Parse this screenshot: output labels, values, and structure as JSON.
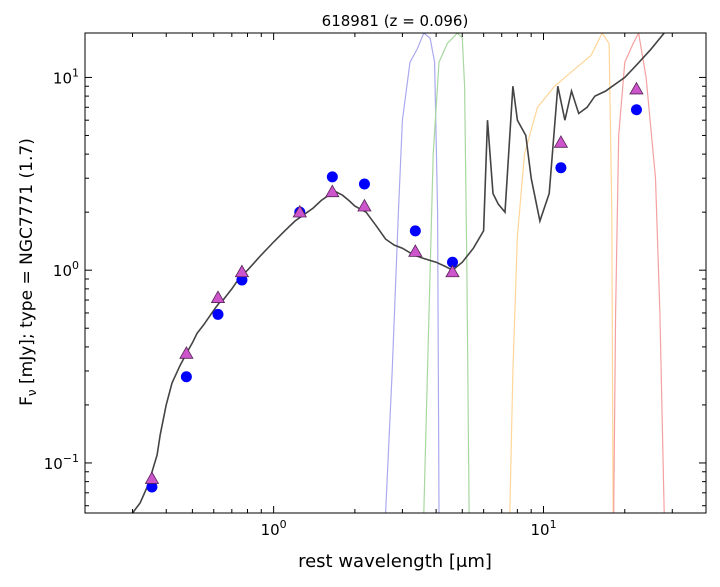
{
  "chart_data": {
    "type": "scatter",
    "title": "618981 (z = 0.096)",
    "xlabel": "rest wavelength [μm]",
    "ylabel": "F_ν [mJy];  type = NGC7771 (1.7)",
    "xscale": "log",
    "yscale": "log",
    "xlim": [
      0.2,
      40
    ],
    "ylim": [
      0.055,
      17
    ],
    "x_ticks": [
      {
        "value": 1,
        "base": "10",
        "exp": "0"
      },
      {
        "value": 10,
        "base": "10",
        "exp": "1"
      }
    ],
    "y_ticks": [
      {
        "value": 0.1,
        "base": "10",
        "exp": "−1"
      },
      {
        "value": 1,
        "base": "10",
        "exp": "0"
      },
      {
        "value": 10,
        "base": "10",
        "exp": "1"
      }
    ],
    "template_sed": {
      "color": "#444444",
      "points": [
        [
          0.3,
          0.055
        ],
        [
          0.32,
          0.062
        ],
        [
          0.34,
          0.075
        ],
        [
          0.35,
          0.085
        ],
        [
          0.37,
          0.11
        ],
        [
          0.38,
          0.14
        ],
        [
          0.4,
          0.2
        ],
        [
          0.42,
          0.26
        ],
        [
          0.45,
          0.32
        ],
        [
          0.48,
          0.38
        ],
        [
          0.5,
          0.42
        ],
        [
          0.52,
          0.47
        ],
        [
          0.55,
          0.52
        ],
        [
          0.6,
          0.62
        ],
        [
          0.63,
          0.68
        ],
        [
          0.65,
          0.7
        ],
        [
          0.7,
          0.8
        ],
        [
          0.75,
          0.92
        ],
        [
          0.8,
          1.0
        ],
        [
          0.9,
          1.2
        ],
        [
          1.0,
          1.4
        ],
        [
          1.1,
          1.6
        ],
        [
          1.2,
          1.8
        ],
        [
          1.3,
          1.95
        ],
        [
          1.4,
          2.1
        ],
        [
          1.5,
          2.3
        ],
        [
          1.6,
          2.45
        ],
        [
          1.7,
          2.55
        ],
        [
          1.8,
          2.45
        ],
        [
          1.9,
          2.3
        ],
        [
          2.0,
          2.15
        ],
        [
          2.2,
          2.0
        ],
        [
          2.4,
          1.7
        ],
        [
          2.6,
          1.45
        ],
        [
          2.8,
          1.35
        ],
        [
          3.0,
          1.3
        ],
        [
          3.3,
          1.2
        ],
        [
          3.6,
          1.15
        ],
        [
          4.0,
          1.1
        ],
        [
          4.3,
          1.05
        ],
        [
          4.6,
          1.0
        ],
        [
          5.0,
          1.1
        ],
        [
          5.5,
          1.3
        ],
        [
          6.0,
          1.6
        ],
        [
          6.2,
          6.0
        ],
        [
          6.5,
          2.5
        ],
        [
          6.8,
          2.2
        ],
        [
          7.2,
          2.0
        ],
        [
          7.7,
          9.0
        ],
        [
          8.0,
          6.0
        ],
        [
          8.6,
          5.0
        ],
        [
          9.0,
          3.0
        ],
        [
          9.7,
          1.8
        ],
        [
          10.5,
          2.5
        ],
        [
          11.3,
          9.0
        ],
        [
          12.0,
          6.0
        ],
        [
          12.7,
          8.5
        ],
        [
          13.5,
          6.5
        ],
        [
          14.5,
          7.0
        ],
        [
          15.5,
          8.0
        ],
        [
          17.0,
          8.5
        ],
        [
          18.0,
          9.0
        ],
        [
          20.0,
          10.0
        ],
        [
          22.0,
          11.5
        ],
        [
          25.0,
          14.0
        ],
        [
          28.0,
          17.0
        ]
      ]
    },
    "filter_curves": [
      {
        "color": "#aaaaee",
        "points": [
          [
            2.6,
            0.055
          ],
          [
            2.75,
            0.3
          ],
          [
            2.9,
            2.0
          ],
          [
            3.0,
            6.0
          ],
          [
            3.2,
            12.0
          ],
          [
            3.4,
            14.0
          ],
          [
            3.6,
            17.0
          ],
          [
            3.8,
            16.0
          ],
          [
            3.95,
            12.0
          ],
          [
            4.05,
            2.0
          ],
          [
            4.1,
            0.055
          ]
        ]
      },
      {
        "color": "#a8d8a0",
        "points": [
          [
            3.6,
            0.055
          ],
          [
            3.75,
            0.5
          ],
          [
            3.9,
            4.0
          ],
          [
            4.1,
            12.0
          ],
          [
            4.4,
            15.0
          ],
          [
            4.8,
            17.0
          ],
          [
            5.0,
            16.0
          ],
          [
            5.1,
            9.0
          ],
          [
            5.2,
            1.0
          ],
          [
            5.3,
            0.055
          ]
        ]
      },
      {
        "color": "#ffd699",
        "points": [
          [
            7.5,
            0.055
          ],
          [
            7.7,
            0.3
          ],
          [
            8.0,
            1.5
          ],
          [
            8.5,
            4.0
          ],
          [
            9.5,
            7.0
          ],
          [
            11.0,
            9.0
          ],
          [
            13.0,
            11.0
          ],
          [
            15.0,
            13.0
          ],
          [
            16.5,
            17.0
          ],
          [
            17.5,
            15.0
          ],
          [
            17.9,
            2.0
          ],
          [
            18.1,
            0.055
          ]
        ]
      },
      {
        "color": "#f5a0a0",
        "points": [
          [
            18.2,
            0.055
          ],
          [
            18.5,
            0.6
          ],
          [
            19.0,
            5.0
          ],
          [
            20.0,
            12.0
          ],
          [
            21.5,
            15.0
          ],
          [
            22.5,
            17.0
          ],
          [
            24.0,
            10.0
          ],
          [
            26.0,
            3.0
          ],
          [
            27.0,
            0.6
          ],
          [
            28.0,
            0.055
          ]
        ]
      }
    ],
    "series": [
      {
        "marker": "circle",
        "color": "#0000ff",
        "points": [
          [
            0.354,
            0.075
          ],
          [
            0.475,
            0.28
          ],
          [
            0.622,
            0.59
          ],
          [
            0.763,
            0.89
          ],
          [
            1.25,
            2.0
          ],
          [
            1.65,
            3.05
          ],
          [
            2.17,
            2.8
          ],
          [
            3.35,
            1.6
          ],
          [
            4.6,
            1.1
          ],
          [
            11.6,
            3.4
          ],
          [
            22.1,
            6.8
          ]
        ]
      },
      {
        "marker": "triangle",
        "color": "#cc55cc",
        "points": [
          [
            0.354,
            0.083
          ],
          [
            0.475,
            0.37
          ],
          [
            0.622,
            0.72
          ],
          [
            0.763,
            0.98
          ],
          [
            1.25,
            2.0
          ],
          [
            1.65,
            2.55
          ],
          [
            2.17,
            2.15
          ],
          [
            3.35,
            1.25
          ],
          [
            4.6,
            0.98
          ],
          [
            11.6,
            4.6
          ],
          [
            22.1,
            8.7
          ]
        ]
      }
    ]
  }
}
